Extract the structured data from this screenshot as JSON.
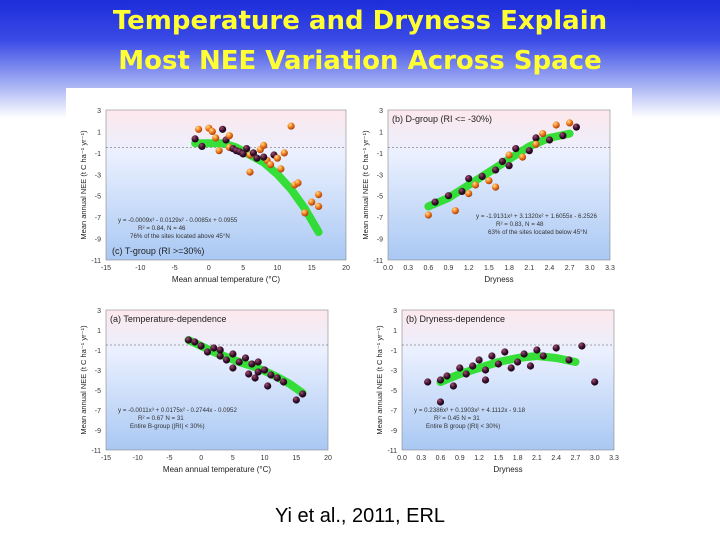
{
  "slide": {
    "title_line1": "Temperature and Dryness Explain",
    "title_line2": "Most NEE Variation Across Space",
    "citation": "Yi et al., 2011, ERL",
    "colors": {
      "title": "#ffff33",
      "background_top": "#1d2dd9",
      "fit_line": "#22dd22",
      "point_dark": "#3a0f2e",
      "point_orange": "#f07a1e"
    }
  },
  "chart_data": [
    {
      "type": "scatter",
      "panel": "top-left",
      "annotation": "(c) T-group (RI >=30%)",
      "xlabel": "Mean annual temperature (°C)",
      "ylabel": "Mean annual NEE (t C ha⁻¹ yr⁻¹)",
      "xlim": [
        -15,
        20
      ],
      "ylim": [
        -11,
        3
      ],
      "xticks": [
        "-15",
        "-10",
        "-5",
        "0",
        "5",
        "10",
        "15",
        "20"
      ],
      "yticks": [
        "3",
        "1",
        "-1",
        "-3",
        "-5",
        "-7",
        "-9",
        "-11"
      ],
      "equation": "y = -0.0009x³ - 0.0129x² - 0.0085x + 0.0955",
      "stats": "R² = 0.84, N = 46",
      "note": "76% of the sites located above 45°N",
      "fit": {
        "x": [
          -2,
          0,
          2,
          4,
          6,
          8,
          10,
          12,
          14,
          16
        ],
        "y": [
          -0.1,
          -0.1,
          -0.1,
          -0.5,
          -1.2,
          -1.9,
          -3.0,
          -4.4,
          -6.2,
          -8.4
        ]
      },
      "points": [
        {
          "x": -2,
          "y": 0.3,
          "color": "dark"
        },
        {
          "x": -1,
          "y": -0.4,
          "color": "dark"
        },
        {
          "x": 0,
          "y": 1.3,
          "color": "orange"
        },
        {
          "x": 0.5,
          "y": 1.0,
          "color": "orange"
        },
        {
          "x": 1,
          "y": 0.4,
          "color": "orange"
        },
        {
          "x": 1.5,
          "y": -0.8,
          "color": "orange"
        },
        {
          "x": 2,
          "y": 1.2,
          "color": "dark"
        },
        {
          "x": 2.5,
          "y": 0.2,
          "color": "dark"
        },
        {
          "x": 3,
          "y": -0.5,
          "color": "orange"
        },
        {
          "x": 3.5,
          "y": -0.6,
          "color": "dark"
        },
        {
          "x": 4,
          "y": -0.8,
          "color": "dark"
        },
        {
          "x": 4.5,
          "y": -0.9,
          "color": "dark"
        },
        {
          "x": 5,
          "y": -1.1,
          "color": "dark"
        },
        {
          "x": 5.5,
          "y": -0.6,
          "color": "dark"
        },
        {
          "x": 6,
          "y": -1.2,
          "color": "orange"
        },
        {
          "x": 6.5,
          "y": -1.0,
          "color": "dark"
        },
        {
          "x": 7,
          "y": -1.5,
          "color": "dark"
        },
        {
          "x": 7.5,
          "y": -0.7,
          "color": "orange"
        },
        {
          "x": 8,
          "y": -0.3,
          "color": "orange"
        },
        {
          "x": 8.5,
          "y": -1.7,
          "color": "orange"
        },
        {
          "x": 9,
          "y": -2.1,
          "color": "orange"
        },
        {
          "x": 9.5,
          "y": -1.2,
          "color": "dark"
        },
        {
          "x": 10,
          "y": -1.5,
          "color": "orange"
        },
        {
          "x": 10.5,
          "y": -2.5,
          "color": "orange"
        },
        {
          "x": 11,
          "y": -1.0,
          "color": "orange"
        },
        {
          "x": 12,
          "y": 1.5,
          "color": "orange"
        },
        {
          "x": 12.5,
          "y": -4.0,
          "color": "orange"
        },
        {
          "x": 13,
          "y": -3.8,
          "color": "orange"
        },
        {
          "x": 14,
          "y": -6.6,
          "color": "orange"
        },
        {
          "x": 15,
          "y": -5.6,
          "color": "orange"
        },
        {
          "x": 16,
          "y": -6.0,
          "color": "orange"
        },
        {
          "x": 16,
          "y": -4.9,
          "color": "orange"
        },
        {
          "x": -1.5,
          "y": 1.2,
          "color": "orange"
        },
        {
          "x": 6,
          "y": -2.8,
          "color": "orange"
        },
        {
          "x": 3,
          "y": 0.6,
          "color": "orange"
        },
        {
          "x": 8,
          "y": -1.4,
          "color": "dark"
        }
      ]
    },
    {
      "type": "scatter",
      "panel": "top-right",
      "annotation": "(b) D-group (RI <= -30%)",
      "xlabel": "Dryness",
      "ylabel": "Mean annual NEE (t C ha⁻¹ yr⁻¹)",
      "xlim": [
        0.0,
        3.3
      ],
      "ylim": [
        -11,
        3
      ],
      "xticks": [
        "0.0",
        "0.3",
        "0.6",
        "0.9",
        "1.2",
        "1.5",
        "1.8",
        "2.1",
        "2.4",
        "2.7",
        "3.0",
        "3.3"
      ],
      "yticks": [
        "3",
        "1",
        "-1",
        "-3",
        "-5",
        "-7",
        "-9",
        "-11"
      ],
      "equation": "y = -1.9131x³ + 3.1320x² + 1.6055x - 6.2526",
      "stats": "R² = 0.83, N = 48",
      "note": "63% of the sites located below 45°N",
      "fit": {
        "x": [
          0.6,
          0.9,
          1.2,
          1.5,
          1.8,
          2.1,
          2.4,
          2.7
        ],
        "y": [
          -6.0,
          -5.2,
          -4.0,
          -2.8,
          -1.6,
          -0.4,
          0.4,
          0.8
        ]
      },
      "points": [
        {
          "x": 0.6,
          "y": -6.8,
          "color": "orange"
        },
        {
          "x": 0.7,
          "y": -5.6,
          "color": "dark"
        },
        {
          "x": 0.9,
          "y": -5.0,
          "color": "dark"
        },
        {
          "x": 1.0,
          "y": -6.4,
          "color": "orange"
        },
        {
          "x": 1.1,
          "y": -4.6,
          "color": "dark"
        },
        {
          "x": 1.2,
          "y": -3.4,
          "color": "dark"
        },
        {
          "x": 1.3,
          "y": -4.0,
          "color": "orange"
        },
        {
          "x": 1.4,
          "y": -3.2,
          "color": "dark"
        },
        {
          "x": 1.5,
          "y": -3.6,
          "color": "orange"
        },
        {
          "x": 1.6,
          "y": -2.6,
          "color": "dark"
        },
        {
          "x": 1.7,
          "y": -1.8,
          "color": "dark"
        },
        {
          "x": 1.8,
          "y": -1.2,
          "color": "orange"
        },
        {
          "x": 1.9,
          "y": -0.6,
          "color": "dark"
        },
        {
          "x": 2.0,
          "y": -1.4,
          "color": "orange"
        },
        {
          "x": 2.1,
          "y": -0.8,
          "color": "dark"
        },
        {
          "x": 2.2,
          "y": 0.4,
          "color": "dark"
        },
        {
          "x": 2.3,
          "y": 0.8,
          "color": "orange"
        },
        {
          "x": 2.4,
          "y": 0.2,
          "color": "dark"
        },
        {
          "x": 2.5,
          "y": 1.6,
          "color": "orange"
        },
        {
          "x": 2.6,
          "y": 0.6,
          "color": "dark"
        },
        {
          "x": 2.7,
          "y": 1.8,
          "color": "orange"
        },
        {
          "x": 2.8,
          "y": 1.4,
          "color": "dark"
        },
        {
          "x": 1.2,
          "y": -4.8,
          "color": "orange"
        },
        {
          "x": 1.6,
          "y": -4.2,
          "color": "orange"
        },
        {
          "x": 1.8,
          "y": -2.2,
          "color": "dark"
        },
        {
          "x": 2.2,
          "y": -0.2,
          "color": "orange"
        }
      ]
    },
    {
      "type": "scatter",
      "panel": "bottom-left",
      "annotation": "(a) Temperature-dependence",
      "xlabel": "Mean annual temperature (°C)",
      "ylabel": "Mean annual NEE (t C ha⁻¹ yr⁻¹)",
      "xlim": [
        -15,
        20
      ],
      "ylim": [
        -11,
        3
      ],
      "xticks": [
        "-15",
        "-10",
        "-5",
        "0",
        "5",
        "10",
        "15",
        "20"
      ],
      "yticks": [
        "3",
        "1",
        "-1",
        "-3",
        "-5",
        "-7",
        "-9",
        "-11"
      ],
      "equation": "y = -0.0011x³ + 0.0175x² - 0.2744x - 0.0952",
      "stats": "R² = 0.67  N = 31",
      "note": "Entire B-group (|RI| < 30%)",
      "fit": {
        "x": [
          -2,
          0,
          2,
          4,
          6,
          8,
          10,
          12,
          14,
          16
        ],
        "y": [
          0.0,
          -0.6,
          -1.2,
          -1.7,
          -2.2,
          -2.6,
          -3.1,
          -3.7,
          -4.4,
          -5.3
        ]
      },
      "points": [
        {
          "x": -2,
          "y": 0.0,
          "color": "dark"
        },
        {
          "x": -1,
          "y": -0.2,
          "color": "dark"
        },
        {
          "x": 0,
          "y": -0.6,
          "color": "dark"
        },
        {
          "x": 1,
          "y": -1.2,
          "color": "dark"
        },
        {
          "x": 2,
          "y": -0.8,
          "color": "dark"
        },
        {
          "x": 3,
          "y": -1.6,
          "color": "dark"
        },
        {
          "x": 4,
          "y": -2.0,
          "color": "dark"
        },
        {
          "x": 5,
          "y": -1.4,
          "color": "dark"
        },
        {
          "x": 6,
          "y": -2.2,
          "color": "dark"
        },
        {
          "x": 7,
          "y": -1.8,
          "color": "dark"
        },
        {
          "x": 7.5,
          "y": -3.4,
          "color": "dark"
        },
        {
          "x": 8,
          "y": -2.4,
          "color": "dark"
        },
        {
          "x": 8.5,
          "y": -3.8,
          "color": "dark"
        },
        {
          "x": 9,
          "y": -2.2,
          "color": "dark"
        },
        {
          "x": 10,
          "y": -3.0,
          "color": "dark"
        },
        {
          "x": 10.5,
          "y": -4.6,
          "color": "dark"
        },
        {
          "x": 11,
          "y": -3.5,
          "color": "dark"
        },
        {
          "x": 12,
          "y": -3.8,
          "color": "dark"
        },
        {
          "x": 13,
          "y": -4.2,
          "color": "dark"
        },
        {
          "x": 15,
          "y": -6.0,
          "color": "dark"
        },
        {
          "x": 16,
          "y": -5.4,
          "color": "dark"
        },
        {
          "x": 5,
          "y": -2.8,
          "color": "dark"
        },
        {
          "x": 3,
          "y": -1.0,
          "color": "dark"
        },
        {
          "x": 9,
          "y": -3.2,
          "color": "dark"
        }
      ]
    },
    {
      "type": "scatter",
      "panel": "bottom-right",
      "annotation": "(b) Dryness-dependence",
      "xlabel": "Dryness",
      "ylabel": "Mean annual NEE (t C ha⁻¹ yr⁻¹)",
      "xlim": [
        0.0,
        3.3
      ],
      "ylim": [
        -11,
        3
      ],
      "xticks": [
        "0.0",
        "0.3",
        "0.6",
        "0.9",
        "1.2",
        "1.5",
        "1.8",
        "2.1",
        "2.4",
        "2.7",
        "3.0",
        "3.3"
      ],
      "yticks": [
        "3",
        "1",
        "-1",
        "-3",
        "-5",
        "-7",
        "-9",
        "-11"
      ],
      "equation": "y = 0.2386x³ + 0.1903x² + 4.1112x - 9.18",
      "stats": "R² = 0.45  N = 31",
      "note": "Entire B group (|RI| < 30%)",
      "fit": {
        "x": [
          0.6,
          0.9,
          1.2,
          1.5,
          1.8,
          2.1,
          2.4,
          2.7
        ],
        "y": [
          -4.2,
          -3.4,
          -2.8,
          -2.2,
          -1.8,
          -1.6,
          -1.8,
          -2.2
        ]
      },
      "points": [
        {
          "x": 0.6,
          "y": -4.0,
          "color": "dark"
        },
        {
          "x": 0.7,
          "y": -3.6,
          "color": "dark"
        },
        {
          "x": 0.8,
          "y": -4.6,
          "color": "dark"
        },
        {
          "x": 0.9,
          "y": -2.8,
          "color": "dark"
        },
        {
          "x": 1.0,
          "y": -3.4,
          "color": "dark"
        },
        {
          "x": 1.1,
          "y": -2.6,
          "color": "dark"
        },
        {
          "x": 1.2,
          "y": -2.0,
          "color": "dark"
        },
        {
          "x": 1.3,
          "y": -3.0,
          "color": "dark"
        },
        {
          "x": 1.4,
          "y": -1.6,
          "color": "dark"
        },
        {
          "x": 1.5,
          "y": -2.4,
          "color": "dark"
        },
        {
          "x": 1.6,
          "y": -1.2,
          "color": "dark"
        },
        {
          "x": 1.7,
          "y": -2.8,
          "color": "dark"
        },
        {
          "x": 1.8,
          "y": -2.2,
          "color": "dark"
        },
        {
          "x": 1.9,
          "y": -1.4,
          "color": "dark"
        },
        {
          "x": 2.0,
          "y": -2.6,
          "color": "dark"
        },
        {
          "x": 2.1,
          "y": -1.0,
          "color": "dark"
        },
        {
          "x": 2.2,
          "y": -1.6,
          "color": "dark"
        },
        {
          "x": 2.4,
          "y": -0.8,
          "color": "dark"
        },
        {
          "x": 2.6,
          "y": -2.0,
          "color": "dark"
        },
        {
          "x": 2.8,
          "y": -0.6,
          "color": "dark"
        },
        {
          "x": 3.0,
          "y": -4.2,
          "color": "dark"
        },
        {
          "x": 0.6,
          "y": -6.2,
          "color": "dark"
        },
        {
          "x": 0.4,
          "y": -4.2,
          "color": "dark"
        },
        {
          "x": 1.3,
          "y": -4.0,
          "color": "dark"
        }
      ]
    }
  ]
}
